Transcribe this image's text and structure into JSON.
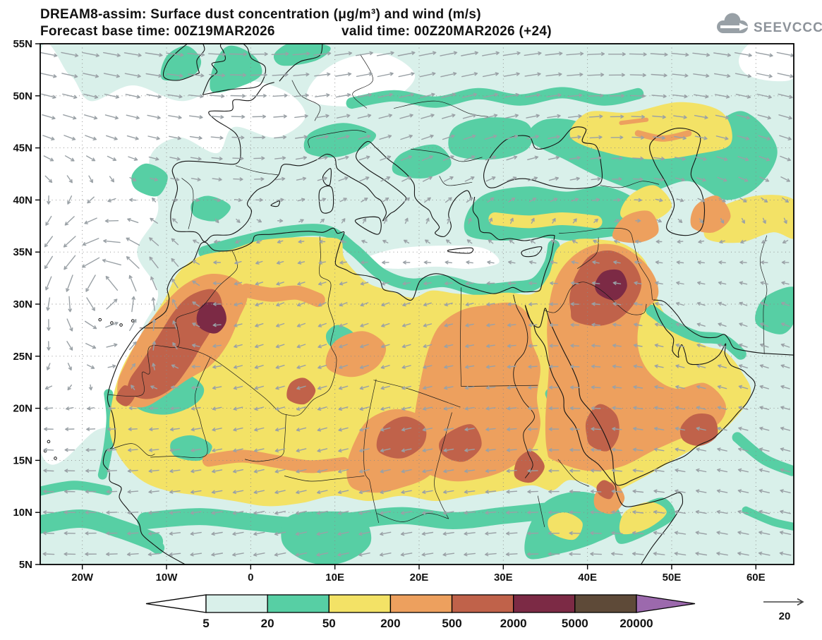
{
  "header": {
    "title_line1": "DREAM8-assim: Surface dust concentration (μg/m³) and wind (m/s)",
    "base_time_label": "Forecast base time: 00Z19MAR2026",
    "valid_time_label": "valid time: 00Z20MAR2026 (+24)",
    "logo_text": "SEEVCCC"
  },
  "chart_data": {
    "type": "heatmap",
    "title": "DREAM8-assim: Surface dust concentration (μg/m³) and wind (m/s)",
    "model": "DREAM8-assim",
    "variable": "Surface dust concentration",
    "variable_units": "μg/m³",
    "overlay": "wind vectors",
    "overlay_units": "m/s",
    "forecast_base_time": "00Z19MAR2026",
    "valid_time": "00Z20MAR2026",
    "lead": "+24",
    "map_extent": {
      "lon_min": -25,
      "lon_max": 64.5,
      "lat_min": 5,
      "lat_max": 55
    },
    "lat_ticks": [
      "55N",
      "50N",
      "45N",
      "40N",
      "35N",
      "30N",
      "25N",
      "20N",
      "15N",
      "10N",
      "5N"
    ],
    "lat_tick_values": [
      55,
      50,
      45,
      40,
      35,
      30,
      25,
      20,
      15,
      10,
      5
    ],
    "lon_ticks": [
      "20W",
      "10W",
      "0",
      "10E",
      "20E",
      "30E",
      "40E",
      "50E",
      "60E"
    ],
    "lon_tick_values": [
      -20,
      -10,
      0,
      10,
      20,
      30,
      40,
      50,
      60
    ],
    "grid": "dotted graticule, 10 deg lon x 5 deg lat",
    "colorbar": {
      "orientation": "horizontal",
      "levels": [
        "5",
        "20",
        "50",
        "200",
        "500",
        "2000",
        "5000",
        "20000"
      ],
      "band_colors": [
        "#ffffff",
        "#d9f0ea",
        "#57cfa4",
        "#f3e266",
        "#eda05e",
        "#c0624a",
        "#7c2a45",
        "#5e4a38",
        "#9c69ad"
      ],
      "units": "μg/m³"
    },
    "wind_reference": {
      "value": "20",
      "units": "m/s"
    },
    "dust_maxima": [
      {
        "lon": -10,
        "lat": 24,
        "level_band": "500-2000"
      },
      {
        "lon": -4.5,
        "lat": 29,
        "level_band": "2000-5000"
      },
      {
        "lon": 6,
        "lat": 21.5,
        "level_band": "500-2000"
      },
      {
        "lon": 18,
        "lat": 17.5,
        "level_band": "500-2000"
      },
      {
        "lon": 25,
        "lat": 17,
        "level_band": "500-2000"
      },
      {
        "lon": 33,
        "lat": 14.5,
        "level_band": "500-2000"
      },
      {
        "lon": 42,
        "lat": 31.5,
        "level_band": "500-2000"
      },
      {
        "lon": 43,
        "lat": 32,
        "level_band": "2000-5000"
      },
      {
        "lon": 42,
        "lat": 18,
        "level_band": "500-2000"
      },
      {
        "lon": 53.5,
        "lat": 18,
        "level_band": "500-2000"
      }
    ]
  }
}
